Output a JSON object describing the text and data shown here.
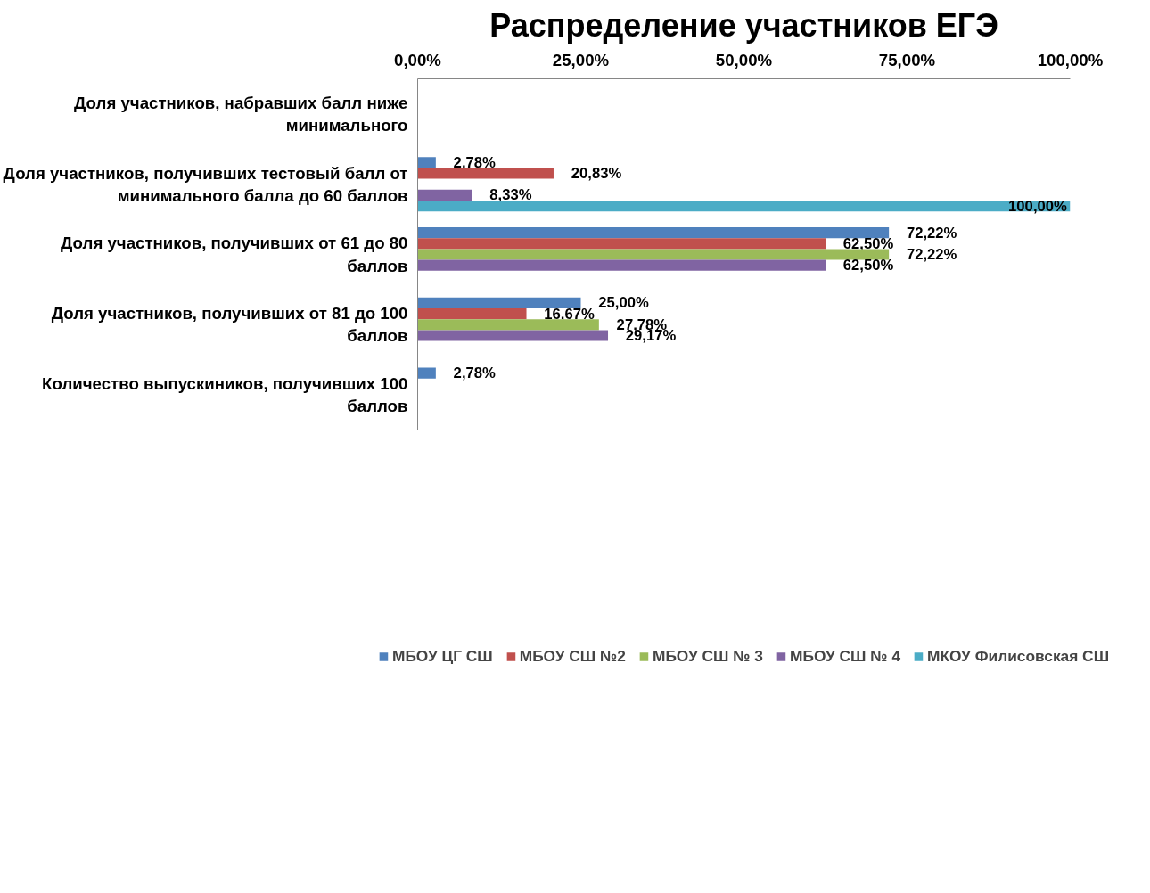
{
  "chart_data": {
    "type": "bar",
    "orientation": "horizontal",
    "title": "Распределение участников ЕГЭ",
    "categories": [
      "Доля участников, набравших балл ниже минимального",
      "Доля участников, получивших тестовый балл от минимального балла до 60 баллов",
      "Доля участников, получивших от 61 до 80 баллов",
      "Доля участников, получивших от 81 до 100 баллов",
      "Количество выпускиников, получивших 100 баллов"
    ],
    "series": [
      {
        "name": "МБОУ ЦГ СШ",
        "color": "#4f81bd",
        "values": [
          null,
          2.78,
          72.22,
          25.0,
          2.78
        ],
        "value_labels": [
          null,
          "2,78%",
          "72,22%",
          "25,00%",
          "2,78%"
        ]
      },
      {
        "name": "МБОУ СШ №2",
        "color": "#c0504d",
        "values": [
          null,
          20.83,
          62.5,
          16.67,
          null
        ],
        "value_labels": [
          null,
          "20,83%",
          "62,50%",
          "16,67%",
          null
        ]
      },
      {
        "name": "МБОУ СШ № 3",
        "color": "#9bbb59",
        "values": [
          null,
          null,
          72.22,
          27.78,
          null
        ],
        "value_labels": [
          null,
          null,
          "72,22%",
          "27,78%",
          null
        ]
      },
      {
        "name": "МБОУ СШ № 4",
        "color": "#8064a2",
        "values": [
          null,
          8.33,
          62.5,
          29.17,
          null
        ],
        "value_labels": [
          null,
          "8,33%",
          "62,50%",
          "29,17%",
          null
        ]
      },
      {
        "name": "МКОУ Филисовская СШ",
        "color": "#4bacc6",
        "values": [
          null,
          100.0,
          null,
          null,
          null
        ],
        "value_labels": [
          null,
          "100,00%",
          null,
          null,
          null
        ]
      }
    ],
    "xlim": [
      0,
      100
    ],
    "xticks": [
      {
        "value": 0,
        "label": "0,00%"
      },
      {
        "value": 25,
        "label": "25,00%"
      },
      {
        "value": 50,
        "label": "50,00%"
      },
      {
        "value": 75,
        "label": "75,00%"
      },
      {
        "value": 100,
        "label": "100,00%"
      }
    ],
    "legend": "bottom",
    "grid": false
  }
}
